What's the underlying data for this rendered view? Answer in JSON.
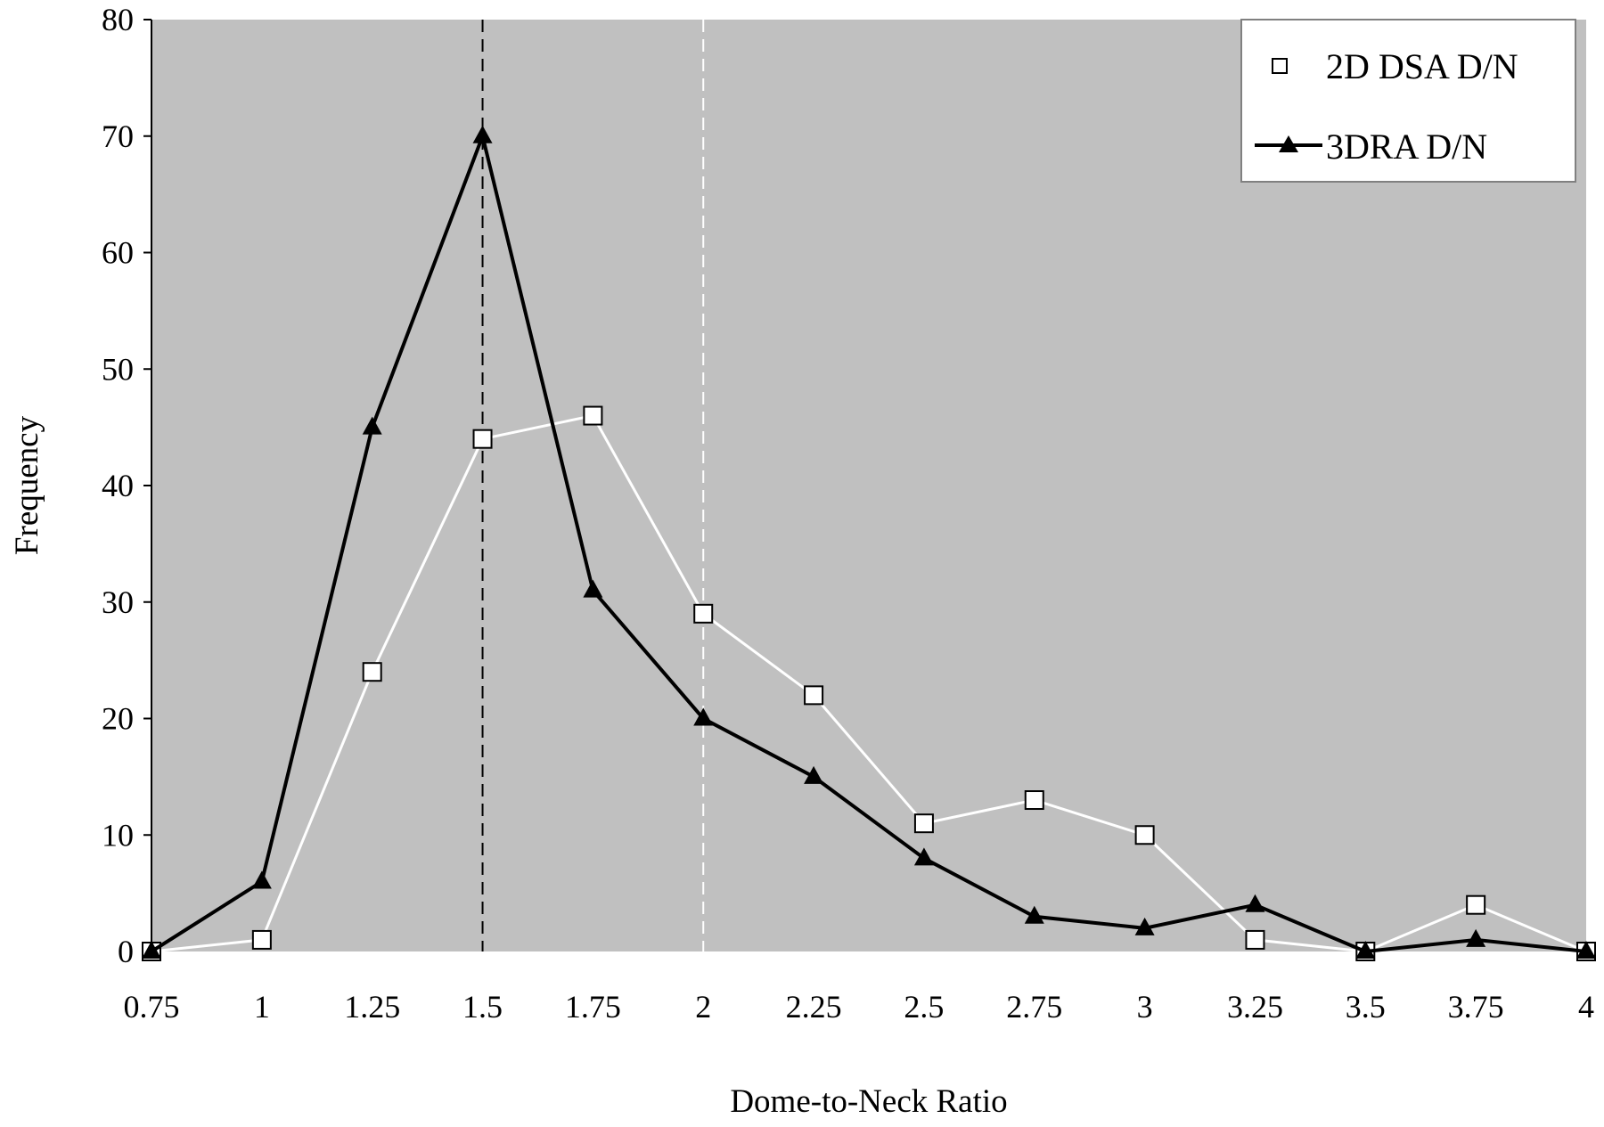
{
  "chart_data": {
    "type": "line",
    "title": "",
    "xlabel": "Dome-to-Neck Ratio",
    "ylabel": "Frequency",
    "x": [
      0.75,
      1,
      1.25,
      1.5,
      1.75,
      2,
      2.25,
      2.5,
      2.75,
      3,
      3.25,
      3.5,
      3.75,
      4
    ],
    "x_tick_labels": [
      "0.75",
      "1",
      "1.25",
      "1.5",
      "1.75",
      "2",
      "2.25",
      "2.5",
      "2.75",
      "3",
      "3.25",
      "3.5",
      "3.75",
      "4"
    ],
    "y_tick_labels": [
      "0",
      "10",
      "20",
      "30",
      "40",
      "50",
      "60",
      "70",
      "80"
    ],
    "xlim": [
      0.75,
      4
    ],
    "ylim": [
      0,
      80
    ],
    "grid": false,
    "legend": "top-right",
    "plot_background": "#c0c0c0",
    "series": [
      {
        "name": "2D DSA D/N",
        "marker": "open-square",
        "color": "#ffffff",
        "values": [
          0,
          1,
          24,
          44,
          46,
          29,
          22,
          11,
          13,
          10,
          1,
          0,
          4,
          0
        ]
      },
      {
        "name": "3DRA D/N",
        "marker": "filled-triangle",
        "color": "#000000",
        "values": [
          0,
          6,
          45,
          70,
          31,
          20,
          15,
          8,
          3,
          2,
          4,
          0,
          1,
          0
        ]
      }
    ],
    "reference_lines": [
      {
        "x": 1.5,
        "color": "#000000",
        "style": "dashed"
      },
      {
        "x": 2,
        "color": "#ffffff",
        "style": "dashed"
      }
    ]
  }
}
